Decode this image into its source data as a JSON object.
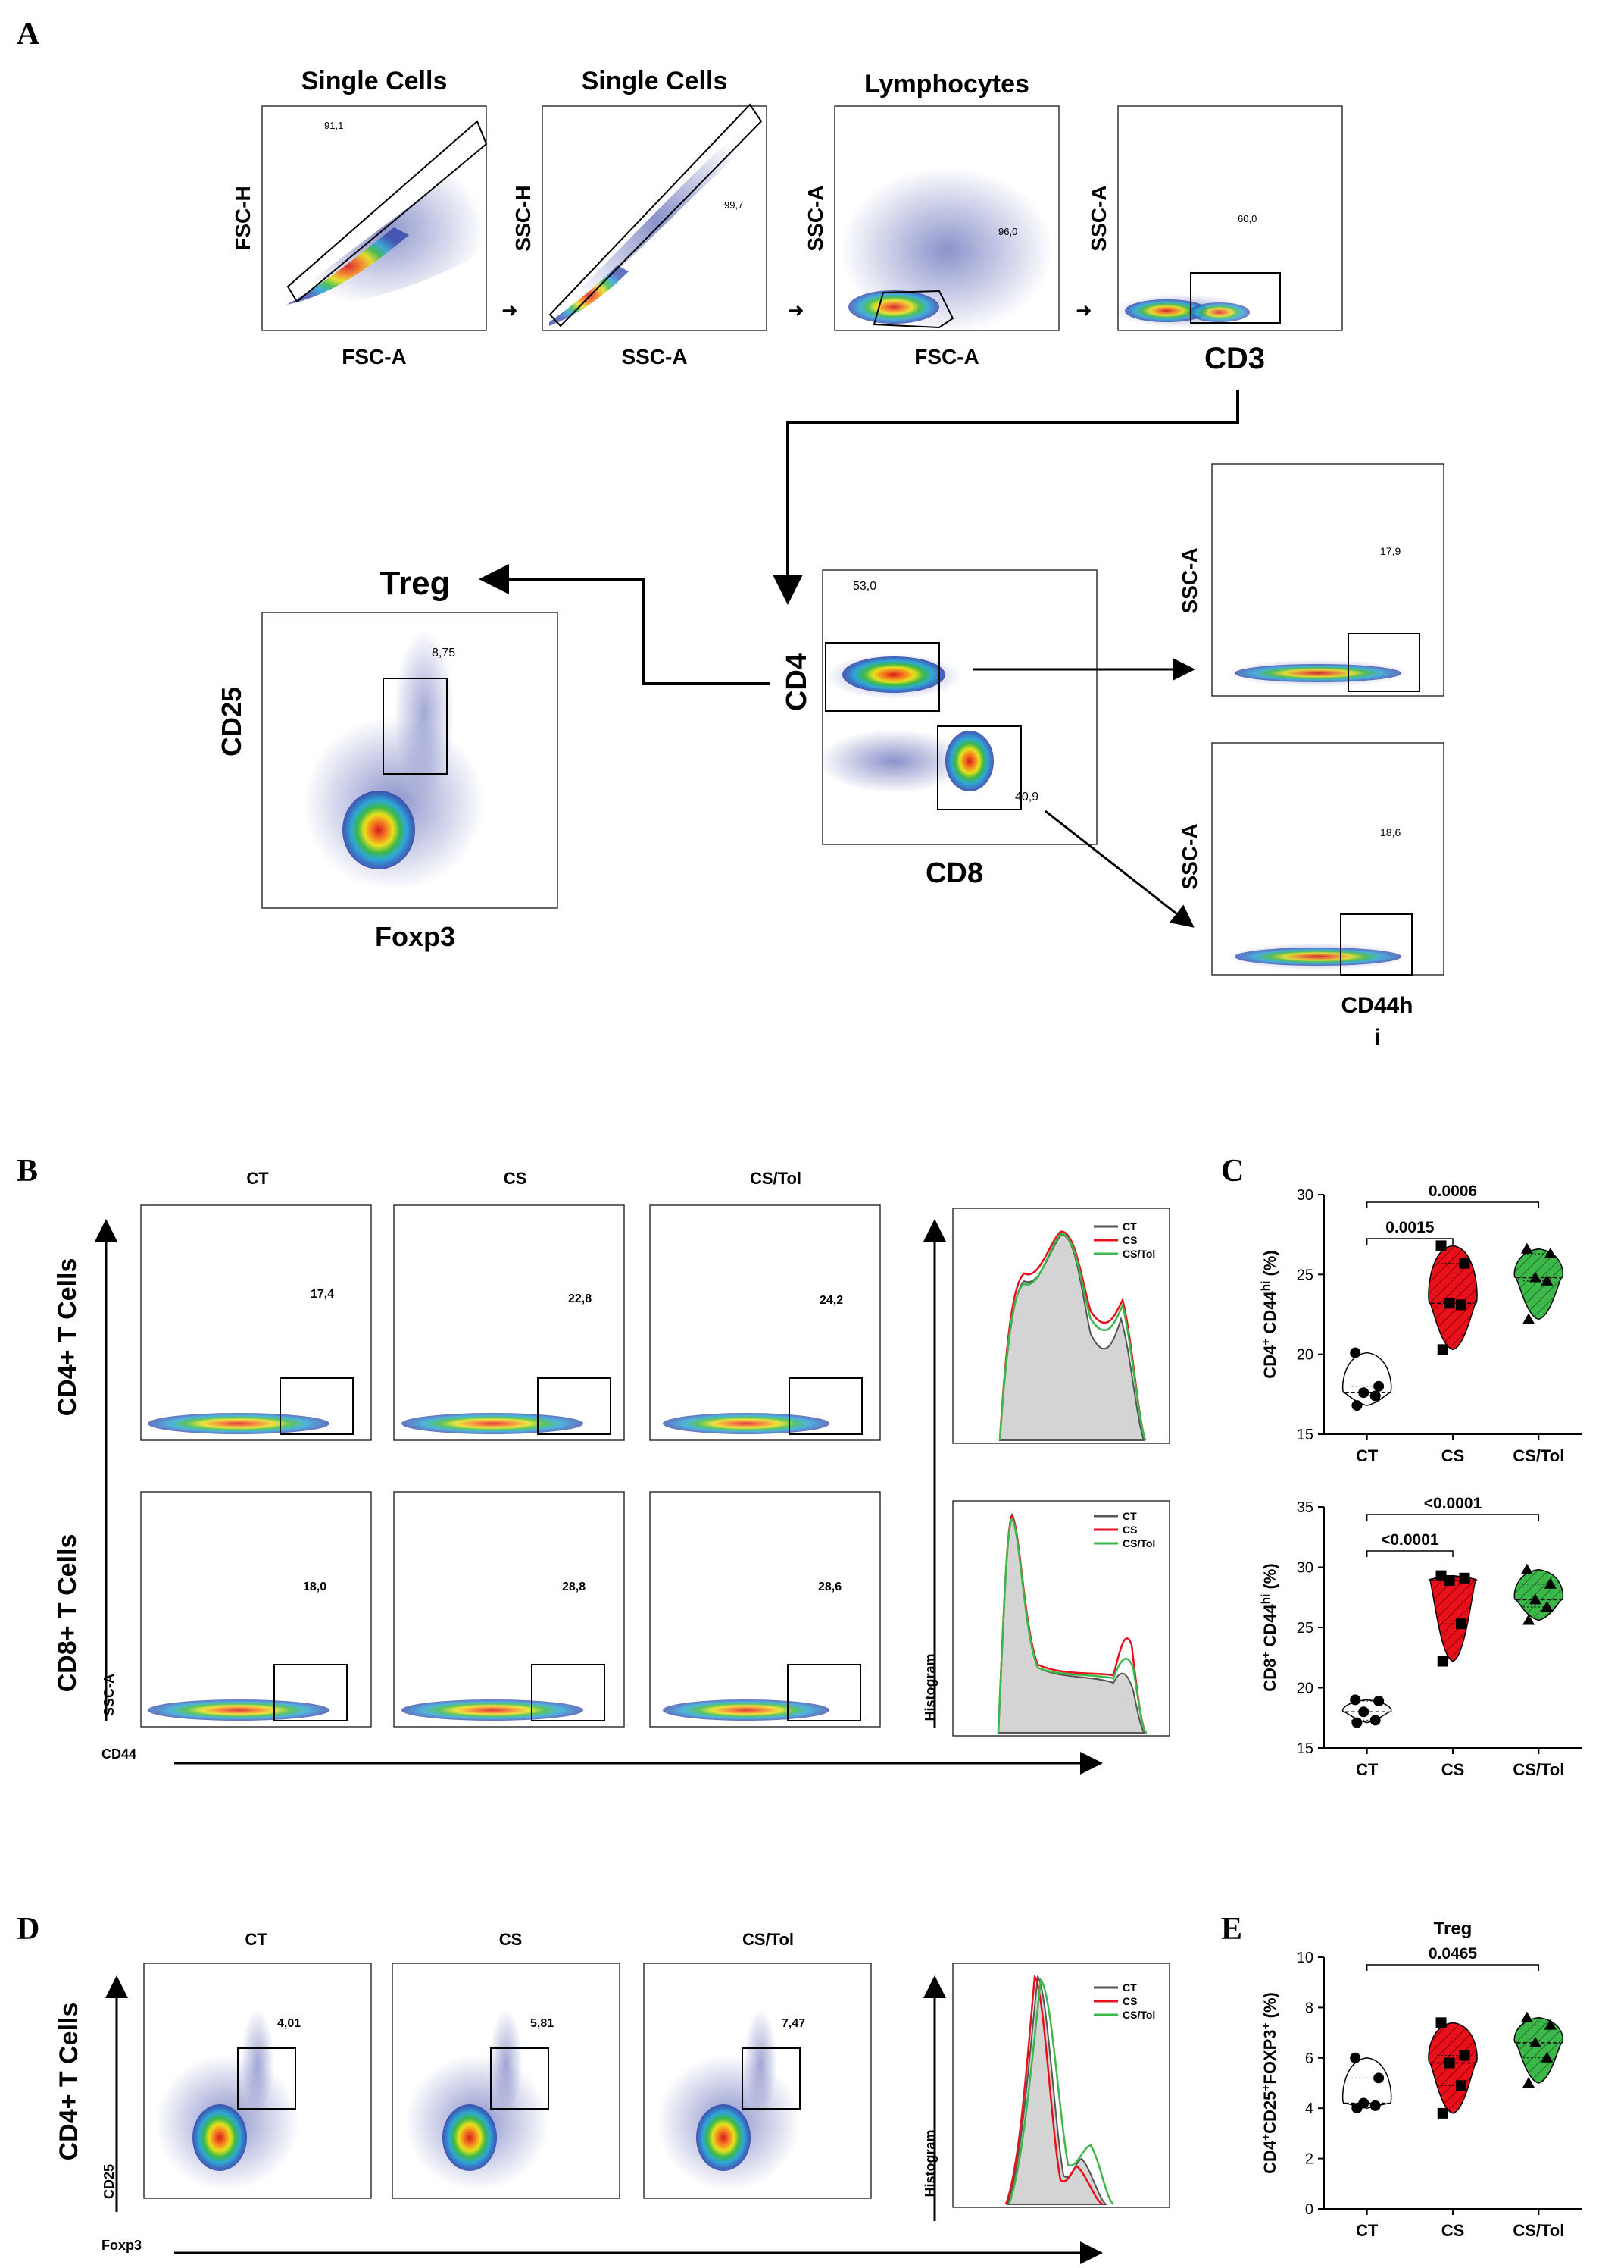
{
  "panel_letters": {
    "a": "A",
    "b": "B",
    "c": "C",
    "d": "D",
    "e": "E"
  },
  "gating": {
    "plot1": {
      "title": "Single Cells",
      "x": "FSC-A",
      "y": "FSC-H",
      "value": "91,1"
    },
    "plot2": {
      "title": "Single Cells",
      "x": "SSC-A",
      "y": "SSC-H",
      "value": "99,7"
    },
    "plot3": {
      "title": "Lymphocytes",
      "x": "FSC-A",
      "y": "SSC-A",
      "value": "96,0"
    },
    "plot4": {
      "x": "CD3",
      "y": "SSC-A",
      "value": "60,0"
    },
    "treg": {
      "title": "Treg",
      "x": "Foxp3",
      "y": "CD25",
      "value": "8,75"
    },
    "cd4cd8": {
      "x": "CD8",
      "y": "CD4",
      "value_cd4": "53,0",
      "value_cd8": "40,9"
    },
    "cd4_cd44": {
      "y": "SSC-A",
      "value": "17,9"
    },
    "cd8_cd44": {
      "y": "SSC-A",
      "value": "18,6",
      "x_line1": "CD44h",
      "x_line2": "i"
    }
  },
  "panel_b": {
    "groups": [
      "CT",
      "CS",
      "CS/Tol"
    ],
    "row_labels": [
      "CD4+ T Cells",
      "CD8+ T Cells"
    ],
    "cd4_values": [
      "17,4",
      "22,8",
      "24,2"
    ],
    "cd8_values": [
      "18,0",
      "28,8",
      "28,6"
    ],
    "y_label": "SSC-A",
    "x_label": "CD44",
    "hist_label": "Histogram",
    "legend": [
      "CT",
      "CS",
      "CS/Tol"
    ]
  },
  "panel_d": {
    "groups": [
      "CT",
      "CS",
      "CS/Tol"
    ],
    "row_label": "CD4+ T Cells",
    "values": [
      "4,01",
      "5,81",
      "7,47"
    ],
    "y_label": "CD25",
    "x_label": "Foxp3",
    "hist_label": "Histogram",
    "legend": [
      "CT",
      "CS",
      "CS/Tol"
    ]
  },
  "colors": {
    "ct": "#ffffff",
    "cs": "#e8111b",
    "cstol": "#3cb84a",
    "hist_ct": "#555555",
    "hist_fill": "#d4d4d4"
  },
  "chart_data": [
    {
      "type": "violin",
      "panel": "C-top",
      "ylabel": "CD4+ CD44hi (%)",
      "ylim": [
        15,
        30
      ],
      "yticks": [
        "15",
        "20",
        "25",
        "30"
      ],
      "categories": [
        "CT",
        "CS",
        "CS/Tol"
      ],
      "series": [
        {
          "name": "CT",
          "values": [
            20.1,
            18.0,
            17.6,
            17.4,
            16.8
          ]
        },
        {
          "name": "CS",
          "values": [
            26.8,
            25.7,
            23.2,
            23.1,
            20.3
          ]
        },
        {
          "name": "CS/Tol",
          "values": [
            26.6,
            26.3,
            24.8,
            24.6,
            22.2
          ]
        }
      ],
      "comparisons": [
        {
          "from": 0,
          "to": 1,
          "label": "0.0015"
        },
        {
          "from": 0,
          "to": 2,
          "label": "0.0006"
        }
      ]
    },
    {
      "type": "violin",
      "panel": "C-bottom",
      "ylabel": "CD8+ CD44hi (%)",
      "ylim": [
        15,
        35
      ],
      "yticks": [
        "15",
        "20",
        "25",
        "30",
        "35"
      ],
      "categories": [
        "CT",
        "CS",
        "CS/Tol"
      ],
      "series": [
        {
          "name": "CT",
          "values": [
            19.0,
            18.9,
            18.0,
            17.3,
            17.1
          ]
        },
        {
          "name": "CS",
          "values": [
            29.3,
            29.1,
            28.9,
            25.3,
            22.2
          ]
        },
        {
          "name": "CS/Tol",
          "values": [
            29.8,
            28.6,
            27.3,
            26.7,
            25.6
          ]
        }
      ],
      "comparisons": [
        {
          "from": 0,
          "to": 1,
          "label": "<0.0001"
        },
        {
          "from": 0,
          "to": 2,
          "label": "<0.0001"
        }
      ]
    },
    {
      "type": "violin",
      "panel": "E",
      "title": "Treg",
      "ylabel": "CD4+CD25+FOXP3+ (%)",
      "ylim": [
        0,
        10
      ],
      "yticks": [
        "0",
        "2",
        "4",
        "6",
        "8",
        "10"
      ],
      "categories": [
        "CT",
        "CS",
        "CS/Tol"
      ],
      "series": [
        {
          "name": "CT",
          "values": [
            6.0,
            5.2,
            4.2,
            4.1,
            4.0
          ]
        },
        {
          "name": "CS",
          "values": [
            7.4,
            6.1,
            5.8,
            4.9,
            3.8
          ]
        },
        {
          "name": "CS/Tol",
          "values": [
            7.6,
            7.3,
            6.6,
            6.0,
            5.0
          ]
        }
      ],
      "comparisons": [
        {
          "from": 0,
          "to": 2,
          "label": "0.0465"
        }
      ]
    }
  ]
}
